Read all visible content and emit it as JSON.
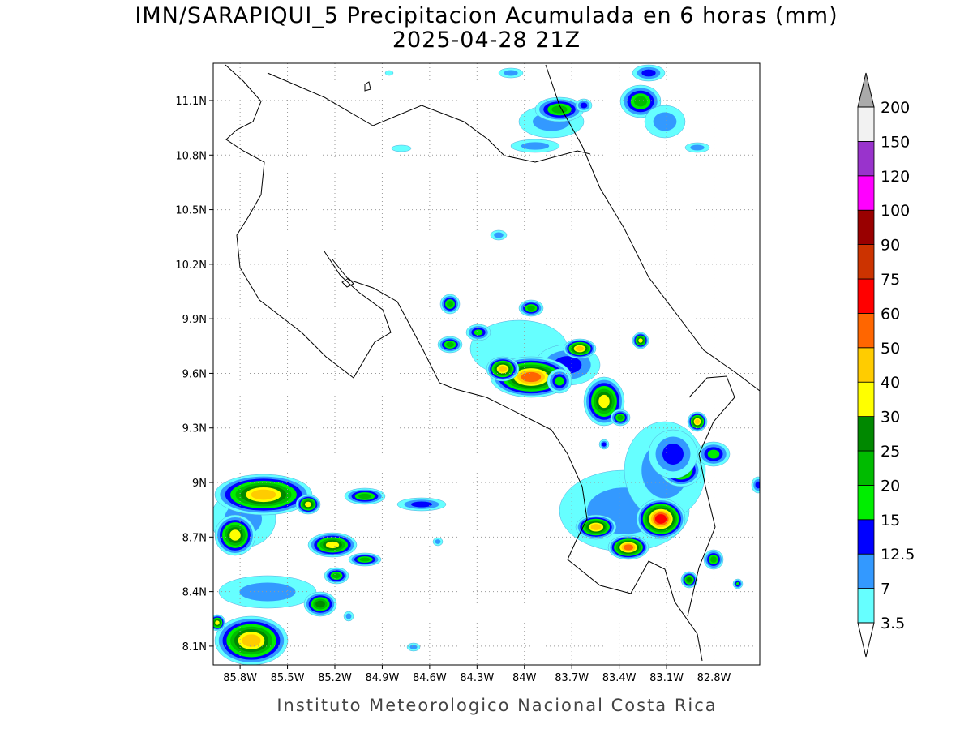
{
  "map": {
    "title": "IMN/SARAPIQUI_5 Precipitacion Acumulada en 6 horas (mm)",
    "subtitle": "2025-04-28 21Z",
    "footer": "Instituto Meteorologico Nacional Costa Rica",
    "xlim": [
      -85.97,
      -82.51
    ],
    "ylim": [
      7.997,
      11.305
    ],
    "grid": true,
    "xticks": [
      {
        "value": -85.8,
        "label": "85.8W"
      },
      {
        "value": -85.5,
        "label": "85.5W"
      },
      {
        "value": -85.2,
        "label": "85.2W"
      },
      {
        "value": -84.9,
        "label": "84.9W"
      },
      {
        "value": -84.6,
        "label": "84.6W"
      },
      {
        "value": -84.3,
        "label": "84.3W"
      },
      {
        "value": -84.0,
        "label": "84W"
      },
      {
        "value": -83.7,
        "label": "83.7W"
      },
      {
        "value": -83.4,
        "label": "83.4W"
      },
      {
        "value": -83.1,
        "label": "83.1W"
      },
      {
        "value": -82.8,
        "label": "82.8W"
      }
    ],
    "yticks": [
      {
        "value": 8.1,
        "label": "8.1N"
      },
      {
        "value": 8.4,
        "label": "8.4N"
      },
      {
        "value": 8.7,
        "label": "8.7N"
      },
      {
        "value": 9.0,
        "label": "9N"
      },
      {
        "value": 9.3,
        "label": "9.3N"
      },
      {
        "value": 9.6,
        "label": "9.6N"
      },
      {
        "value": 9.9,
        "label": "9.9N"
      },
      {
        "value": 10.2,
        "label": "10.2N"
      },
      {
        "value": 10.5,
        "label": "10.5N"
      },
      {
        "value": 10.8,
        "label": "10.8N"
      },
      {
        "value": 11.1,
        "label": "11.1N"
      }
    ],
    "colorbar": {
      "levels": [
        3.5,
        7,
        12.5,
        15,
        20,
        25,
        30,
        40,
        50,
        60,
        75,
        90,
        100,
        120,
        150,
        200
      ],
      "colors": [
        "#66ffff",
        "#3399ff",
        "#0000ff",
        "#00ee00",
        "#00bb00",
        "#008800",
        "#ffff00",
        "#ffcc00",
        "#ff6600",
        "#ff0000",
        "#cc3300",
        "#990000",
        "#ff00ff",
        "#9933cc",
        "#f2f2f2"
      ],
      "over_color": "#aaaaaa",
      "under_color": "#ffffff"
    }
  }
}
